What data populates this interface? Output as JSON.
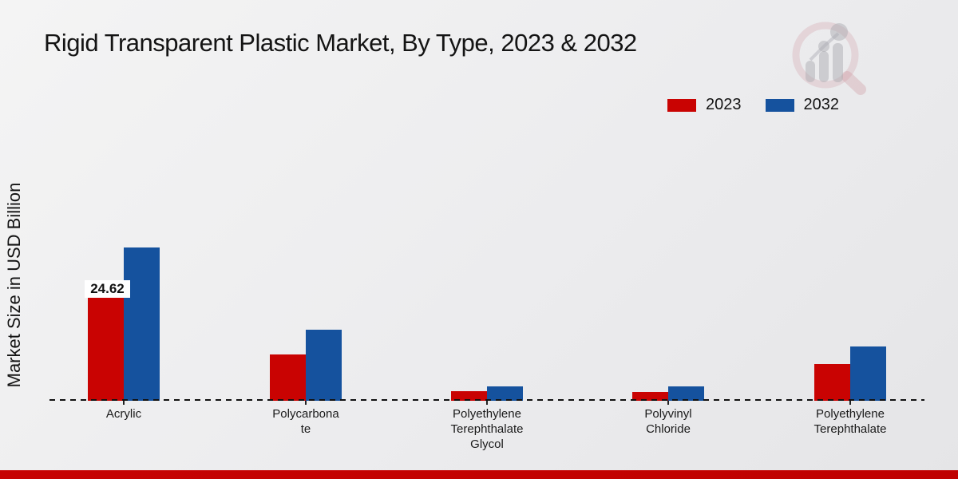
{
  "title": "Rigid Transparent Plastic Market, By Type, 2023 & 2032",
  "y_axis_label": "Market Size in USD Billion",
  "legend": [
    {
      "label": "2023",
      "color": "#c90302"
    },
    {
      "label": "2032",
      "color": "#15529e"
    }
  ],
  "colors": {
    "bar_2023": "#c90302",
    "bar_2032": "#15529e",
    "footer_strip": "#c00302",
    "baseline": "#111111"
  },
  "watermark_icon": "magnifier-bar-chart-logo",
  "chart_data": {
    "type": "bar",
    "title": "Rigid Transparent Plastic Market, By Type, 2023 & 2032",
    "ylabel": "Market Size in USD Billion",
    "xlabel": "",
    "categories": [
      "Acrylic",
      "Polycarbonate",
      "Polyethylene Terephthalate Glycol",
      "Polyvinyl Chloride",
      "Polyethylene Terephthalate"
    ],
    "category_display": [
      "Acrylic",
      "Polycarbona\nte",
      "Polyethylene\nTerephthalate\nGlycol",
      "Polyvinyl\nChloride",
      "Polyethylene\nTerephthalate"
    ],
    "series": [
      {
        "name": "2023",
        "color": "#c90302",
        "values": [
          24.62,
          11.1,
          2.3,
          2.1,
          8.8
        ]
      },
      {
        "name": "2032",
        "color": "#15529e",
        "values": [
          36.6,
          17.0,
          3.5,
          3.4,
          13.0
        ]
      }
    ],
    "annotations": [
      {
        "series_index": 0,
        "category_index": 0,
        "text": "24.62"
      }
    ],
    "legend_position": "top-right",
    "grid": false,
    "baseline_style": "dashed",
    "note": "only the 24.62 value is labeled on the chart; other values estimated from bar heights"
  }
}
